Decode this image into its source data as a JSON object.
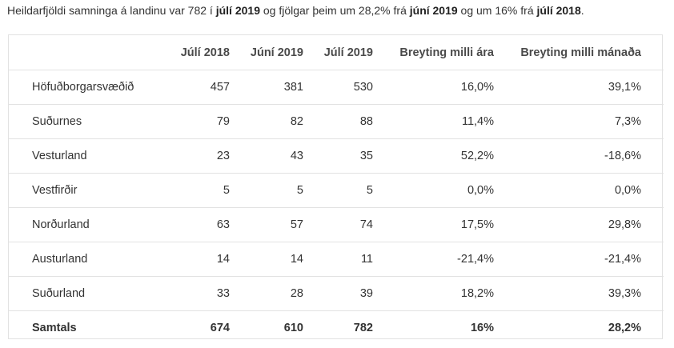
{
  "intro": {
    "t1": "Heildarfjöldi samninga á landinu var 782 í ",
    "b1": "júlí 2019",
    "t2": " og fjölgar þeim um 28,2% frá ",
    "b2": "júní 2019",
    "t3": " og um 16% frá ",
    "b3": "júlí 2018",
    "t4": "."
  },
  "table": {
    "headers": [
      "",
      "Júlí 2018",
      "Júní 2019",
      "Júlí 2019",
      "Breyting milli ára",
      "Breyting milli mánaða"
    ],
    "rows": [
      {
        "name": "Höfuðborgarsvæðið",
        "c1": "457",
        "c2": "381",
        "c3": "530",
        "c4": "16,0%",
        "c5": "39,1%"
      },
      {
        "name": "Suðurnes",
        "c1": "79",
        "c2": "82",
        "c3": "88",
        "c4": "11,4%",
        "c5": "7,3%"
      },
      {
        "name": "Vesturland",
        "c1": "23",
        "c2": "43",
        "c3": "35",
        "c4": "52,2%",
        "c5": "-18,6%"
      },
      {
        "name": "Vestfirðir",
        "c1": "5",
        "c2": "5",
        "c3": "5",
        "c4": "0,0%",
        "c5": "0,0%"
      },
      {
        "name": "Norðurland",
        "c1": "63",
        "c2": "57",
        "c3": "74",
        "c4": "17,5%",
        "c5": "29,8%"
      },
      {
        "name": "Austurland",
        "c1": "14",
        "c2": "14",
        "c3": "11",
        "c4": "-21,4%",
        "c5": "-21,4%"
      },
      {
        "name": "Suðurland",
        "c1": "33",
        "c2": "28",
        "c3": "39",
        "c4": "18,2%",
        "c5": "39,3%"
      }
    ],
    "total": {
      "name": "Samtals",
      "c1": "674",
      "c2": "610",
      "c3": "782",
      "c4": "16%",
      "c5": "28,2%"
    }
  }
}
